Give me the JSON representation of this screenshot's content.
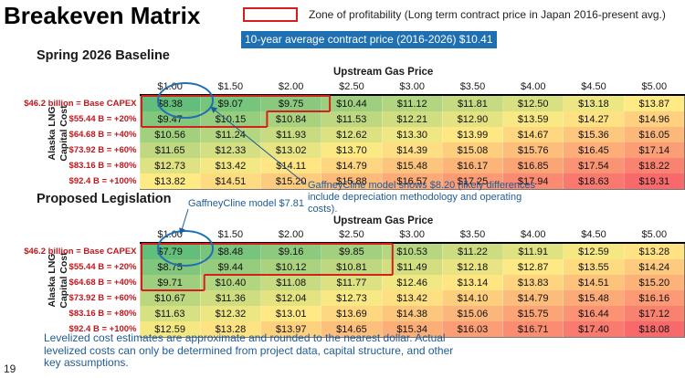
{
  "title": "Breakeven Matrix",
  "legend": {
    "label": "Zone of profitability (Long term contract price in Japan 2016-present avg.)",
    "color": "#d51f1f"
  },
  "avg_banner": "10-year average contract price (2016-2026) $10.41",
  "x_axis_title": "Upstream Gas Price",
  "y_axis_title": [
    "Alaska LNG",
    "Capital Cost"
  ],
  "callouts": {
    "gaffney_top": "GaffneyCline model shows $8.20 (likely differences include depreciation methodology and operating costs).",
    "gaffney_bottom": "GaffneyCline model $7.81"
  },
  "footnote": "Levelized cost estimates are approximate and rounded to the nearest dollar. Actual levelized costs can only be determined from project data, capital structure, and other key assumptions.",
  "page_number": "19",
  "colors": {
    "low": "#63be7b",
    "mid": "#ffeb84",
    "high": "#f8696b",
    "accent_red": "#d51f1f",
    "text_blue": "#1f5b96"
  },
  "chart_data": [
    {
      "type": "heatmap",
      "title": "Spring 2026 Baseline",
      "xlabel": "Upstream Gas Price",
      "ylabel": "Alaska LNG Capital Cost",
      "columns": [
        "$1.00",
        "$1.50",
        "$2.00",
        "$2.50",
        "$3.00",
        "$3.50",
        "$4.00",
        "$4.50",
        "$5.00"
      ],
      "rows": [
        "$46.2 billion = Base CAPEX",
        "$55.44 B = +20%",
        "$64.68 B = +40%",
        "$73.92 B = +60%",
        "$83.16 B = +80%",
        "$92.4 B = +100%"
      ],
      "values": [
        [
          "$8.38",
          "$9.07",
          "$9.75",
          "$10.44",
          "$11.12",
          "$11.81",
          "$12.50",
          "$13.18",
          "$13.87"
        ],
        [
          "$9.47",
          "$10.15",
          "$10.84",
          "$11.53",
          "$12.21",
          "$12.90",
          "$13.59",
          "$14.27",
          "$14.96"
        ],
        [
          "$10.56",
          "$11.24",
          "$11.93",
          "$12.62",
          "$13.30",
          "$13.99",
          "$14.67",
          "$15.36",
          "$16.05"
        ],
        [
          "$11.65",
          "$12.33",
          "$13.02",
          "$13.70",
          "$14.39",
          "$15.08",
          "$15.76",
          "$16.45",
          "$17.14"
        ],
        [
          "$12.73",
          "$13.42",
          "$14.11",
          "$14.79",
          "$15.48",
          "$16.17",
          "$16.85",
          "$17.54",
          "$18.22"
        ],
        [
          "$13.82",
          "$14.51",
          "$15.20",
          "$15.88",
          "$16.57",
          "$17.25",
          "$17.94",
          "$18.63",
          "$19.31"
        ]
      ],
      "profitable_cells": [
        [
          0,
          0
        ],
        [
          0,
          1
        ],
        [
          0,
          2
        ],
        [
          1,
          0
        ],
        [
          1,
          1
        ]
      ],
      "circled_cell": [
        0,
        0
      ]
    },
    {
      "type": "heatmap",
      "title": "Proposed Legislation",
      "xlabel": "Upstream Gas Price",
      "ylabel": "Alaska LNG Capital Cost",
      "columns": [
        "$1.00",
        "$1.50",
        "$2.00",
        "$2.50",
        "$3.00",
        "$3.50",
        "$4.00",
        "$4.50",
        "$5.00"
      ],
      "rows": [
        "$46.2 billion = Base CAPEX",
        "$55.44 B = +20%",
        "$64.68 B = +40%",
        "$73.92 B = +60%",
        "$83.16 B = +80%",
        "$92.4 B = +100%"
      ],
      "values": [
        [
          "$7.79",
          "$8.48",
          "$9.16",
          "$9.85",
          "$10.53",
          "$11.22",
          "$11.91",
          "$12.59",
          "$13.28"
        ],
        [
          "$8.75",
          "$9.44",
          "$10.12",
          "$10.81",
          "$11.49",
          "$12.18",
          "$12.87",
          "$13.55",
          "$14.24"
        ],
        [
          "$9.71",
          "$10.40",
          "$11.08",
          "$11.77",
          "$12.46",
          "$13.14",
          "$13.83",
          "$14.51",
          "$15.20"
        ],
        [
          "$10.67",
          "$11.36",
          "$12.04",
          "$12.73",
          "$13.42",
          "$14.10",
          "$14.79",
          "$15.48",
          "$16.16"
        ],
        [
          "$11.63",
          "$12.32",
          "$13.01",
          "$13.69",
          "$14.38",
          "$15.06",
          "$15.75",
          "$16.44",
          "$17.12"
        ],
        [
          "$12.59",
          "$13.28",
          "$13.97",
          "$14.65",
          "$15.34",
          "$16.03",
          "$16.71",
          "$17.40",
          "$18.08"
        ]
      ],
      "profitable_cells": [
        [
          0,
          0
        ],
        [
          0,
          1
        ],
        [
          0,
          2
        ],
        [
          0,
          3
        ],
        [
          1,
          0
        ],
        [
          1,
          1
        ],
        [
          1,
          2
        ],
        [
          1,
          3
        ],
        [
          2,
          0
        ]
      ],
      "circled_cell": [
        0,
        0
      ]
    }
  ]
}
